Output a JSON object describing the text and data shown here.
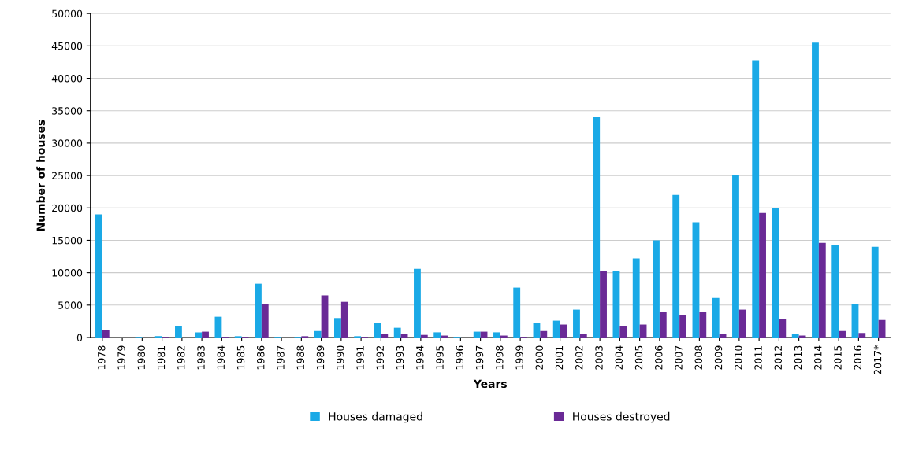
{
  "chart_data": {
    "type": "bar",
    "xlabel": "Years",
    "ylabel": "Number of houses",
    "categories": [
      "1978",
      "1979",
      "1980",
      "1981",
      "1982",
      "1983",
      "1984",
      "1985",
      "1986",
      "1987",
      "1988",
      "1989",
      "1990",
      "1991",
      "1992",
      "1993",
      "1994",
      "1995",
      "1996",
      "1997",
      "1998",
      "1999",
      "2000",
      "2001",
      "2002",
      "2003",
      "2004",
      "2005",
      "2006",
      "2007",
      "2008",
      "2009",
      "2010",
      "2011",
      "2012",
      "2013",
      "2014",
      "2015",
      "2016",
      "2017*"
    ],
    "series": [
      {
        "name": "Houses damaged",
        "color": "#1aa9e6",
        "values": [
          19000,
          0,
          100,
          200,
          1700,
          800,
          3200,
          200,
          8300,
          100,
          100,
          1000,
          3000,
          200,
          2200,
          1500,
          10600,
          800,
          100,
          900,
          800,
          7700,
          2200,
          2600,
          4300,
          34000,
          10200,
          12200,
          15000,
          22000,
          17800,
          6100,
          25000,
          42800,
          20000,
          600,
          45500,
          14200,
          5100,
          14000
        ]
      },
      {
        "name": "Houses destroyed",
        "color": "#6a2a96",
        "values": [
          1100,
          0,
          0,
          100,
          0,
          900,
          100,
          100,
          5100,
          0,
          200,
          6500,
          5500,
          100,
          500,
          500,
          400,
          300,
          0,
          900,
          300,
          100,
          1000,
          2000,
          500,
          10300,
          1700,
          2000,
          4000,
          3500,
          3900,
          500,
          4300,
          19200,
          2800,
          300,
          14600,
          1000,
          700,
          2700
        ]
      }
    ],
    "ylim": [
      0,
      50000
    ],
    "yticks": [
      0,
      5000,
      10000,
      15000,
      20000,
      25000,
      30000,
      35000,
      40000,
      45000,
      50000
    ],
    "grid": "y",
    "legend": "bottom"
  }
}
